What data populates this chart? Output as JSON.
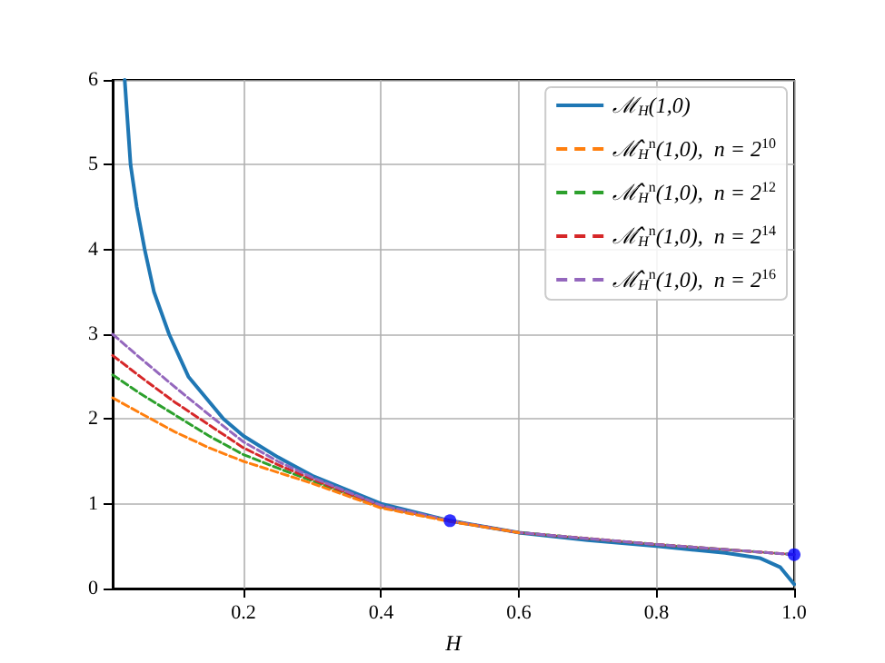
{
  "chart_data": {
    "type": "line",
    "xlabel": "H",
    "xlim": [
      0.01,
      1
    ],
    "xticks": [
      0.2,
      0.4,
      0.6,
      0.8,
      {
        "value": 1,
        "label": "1.0"
      }
    ],
    "ylim": [
      0,
      6
    ],
    "yticks": [
      0,
      1,
      2,
      3,
      4,
      5,
      6
    ],
    "grid": true,
    "legend": "top right",
    "series": [
      {
        "name": "ℳ$_{H}$(1,0)",
        "color": "#1f77b4",
        "line_style": "solid",
        "marker": "none",
        "x": [
          0.0275,
          0.036,
          0.045,
          0.0565,
          0.07,
          0.092,
          0.12,
          0.171,
          0.2,
          0.25,
          0.3,
          0.4,
          0.5,
          0.6,
          0.7,
          0.8,
          0.9,
          0.95,
          0.98,
          1.0
        ],
        "values": [
          6,
          5,
          4.5,
          4,
          3.5,
          3,
          2.5,
          2,
          1.8,
          1.55,
          1.33,
          1.0,
          0.8,
          0.66,
          0.57,
          0.5,
          0.42,
          0.36,
          0.25,
          0.05
        ]
      },
      {
        "name": "ℳ̂$_{H}$$^{n}$(1,0),  n = 2$^{10}$",
        "color": "#ff7f0e",
        "line_style": "dashed",
        "marker": "none",
        "x": [
          0.01,
          0.05,
          0.1,
          0.15,
          0.2,
          0.25,
          0.3,
          0.4,
          0.5,
          0.6
        ],
        "values": [
          2.25,
          2.07,
          1.85,
          1.66,
          1.5,
          1.37,
          1.24,
          0.95,
          0.79,
          0.66
        ]
      },
      {
        "name": "ℳ̂$_{H}$$^{n}$(1,0),  n = 2$^{12}$",
        "color": "#2ca02c",
        "line_style": "dashed",
        "marker": "none",
        "x": [
          0.01,
          0.05,
          0.1,
          0.15,
          0.2,
          0.25,
          0.3,
          0.4,
          0.5,
          0.6,
          0.8,
          1.0
        ],
        "values": [
          2.52,
          2.3,
          2.05,
          1.8,
          1.58,
          1.42,
          1.27,
          0.96,
          0.8,
          0.66,
          0.52,
          0.4
        ]
      },
      {
        "name": "ℳ̂$_{H}$$^{n}$(1,0),  n = 2$^{14}$",
        "color": "#d62728",
        "line_style": "dashed",
        "marker": "none",
        "x": [
          0.01,
          0.05,
          0.1,
          0.15,
          0.2,
          0.25,
          0.3,
          0.4,
          0.5,
          0.6,
          0.8,
          1.0
        ],
        "values": [
          2.75,
          2.5,
          2.2,
          1.93,
          1.66,
          1.46,
          1.29,
          0.97,
          0.8,
          0.66,
          0.52,
          0.4
        ]
      },
      {
        "name": "ℳ̂$_{H}$$^{n}$(1,0),  n = 2$^{16}$",
        "color": "#9467bd",
        "line_style": "dashed",
        "marker": "none",
        "x": [
          0.01,
          0.05,
          0.1,
          0.15,
          0.2,
          0.25,
          0.3,
          0.4,
          0.5,
          0.6,
          0.8,
          1.0
        ],
        "values": [
          3.0,
          2.72,
          2.38,
          2.05,
          1.73,
          1.5,
          1.31,
          0.98,
          0.8,
          0.66,
          0.52,
          0.4
        ]
      },
      {
        "type": "scatter",
        "color": "#0000ff",
        "marker": "circle",
        "x": [
          0.5,
          1.0
        ],
        "values": [
          0.8,
          0.4
        ]
      }
    ]
  }
}
